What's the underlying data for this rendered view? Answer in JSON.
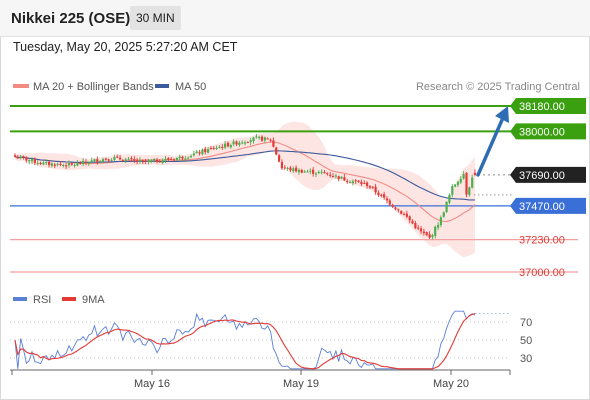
{
  "header": {
    "title": "Nikkei 225 (OSE)",
    "interval": "30 MIN",
    "datetime": "Tuesday, May 20, 2025 5:27:20 AM CET"
  },
  "legend": {
    "ma20": "MA 20 + Bollinger Bands",
    "ma50": "MA 50",
    "copyright": "Research © 2025 Trading Central",
    "rsi": "RSI",
    "rsi_ma": "9MA"
  },
  "colors": {
    "ma20": "#f28b82",
    "ma50": "#3d5a9c",
    "bollinger_fill": "#fde0df",
    "candle_up": "#4caf50",
    "candle_down": "#e53935",
    "resistance": "#3aa00f",
    "support": "#3a6fd8",
    "minor_level": "#f2a0a0",
    "arrow": "#2e6db4",
    "rsi": "#5a7fd6",
    "rsi_ma": "#e53935"
  },
  "chart_data": [
    {
      "type": "candlestick",
      "title": "Nikkei 225 (OSE)",
      "price_axis_range": [
        36950,
        38260
      ],
      "last_price": 37690.0,
      "x_tick_labels": [
        "May 16",
        "May 19",
        "May 20"
      ],
      "levels": [
        {
          "value": 38180.0,
          "label": "38180.00",
          "kind": "resistance"
        },
        {
          "value": 38000.0,
          "label": "38000.00",
          "kind": "resistance"
        },
        {
          "value": 37690.0,
          "label": "37690.00",
          "kind": "last"
        },
        {
          "value": 37470.0,
          "label": "37470.00",
          "kind": "support"
        },
        {
          "value": 37230.0,
          "label": "37230.00",
          "kind": "minor"
        },
        {
          "value": 37000.0,
          "label": "37000.00",
          "kind": "minor"
        }
      ],
      "target": 38180.0,
      "series": [
        {
          "name": "MA 20 + Bollinger Bands"
        },
        {
          "name": "MA 50"
        }
      ]
    },
    {
      "type": "line",
      "title": "RSI",
      "ylim": [
        15,
        85
      ],
      "y_ticks": [
        70,
        50,
        30
      ],
      "series": [
        {
          "name": "RSI"
        },
        {
          "name": "9MA"
        }
      ]
    }
  ]
}
